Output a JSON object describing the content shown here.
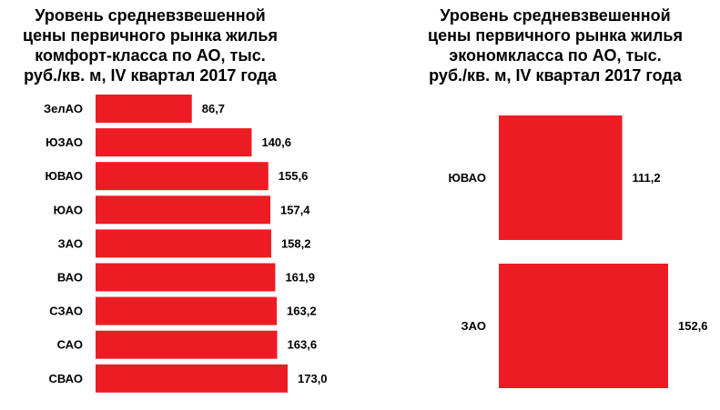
{
  "bar_color": "#ED1C24",
  "chart_data": [
    {
      "type": "bar",
      "orientation": "horizontal",
      "title": "Уровень средневзвешенной\nцены первичного рынка жилья\nкомфорт-класса  по АО, тыс.\nруб./кв. м, IV квартал 2017 года",
      "categories": [
        "ЗелАО",
        "ЮЗАО",
        "ЮВАО",
        "ЮАО",
        "ЗАО",
        "ВАО",
        "СЗАО",
        "САО",
        "СВАО"
      ],
      "values": [
        86.7,
        140.6,
        155.6,
        157.4,
        158.2,
        161.9,
        163.2,
        163.6,
        173.0
      ],
      "value_labels": [
        "86,7",
        "140,6",
        "155,6",
        "157,4",
        "158,2",
        "161,9",
        "163,2",
        "163,6",
        "173,0"
      ],
      "xlim": [
        0,
        173.0
      ],
      "grid": false,
      "legend": "none"
    },
    {
      "type": "bar",
      "orientation": "horizontal",
      "title": "Уровень средневзвешенной\nцены первичного рынка жилья\nэкономкласса  по АО, тыс.\nруб./кв. м, IV квартал 2017 года",
      "categories": [
        "ЮВАО",
        "ЗАО"
      ],
      "values": [
        111.2,
        152.6
      ],
      "value_labels": [
        "111,2",
        "152,6"
      ],
      "xlim": [
        0,
        152.6
      ],
      "grid": false,
      "legend": "none"
    }
  ]
}
